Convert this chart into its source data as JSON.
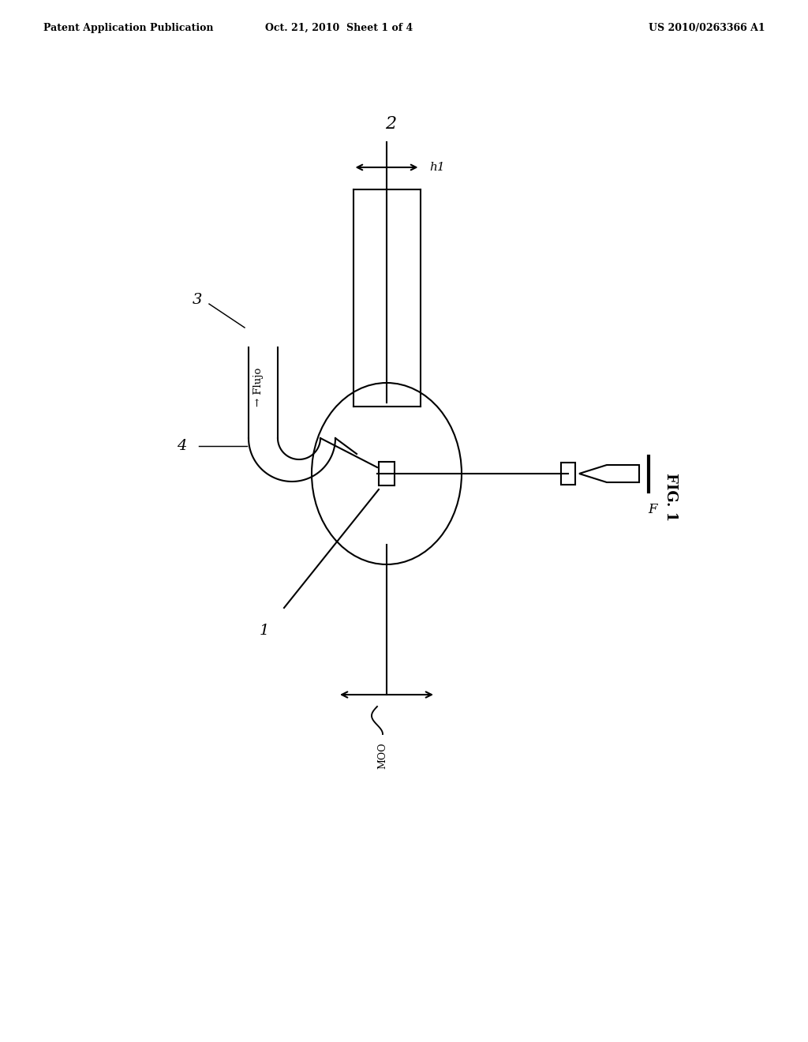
{
  "header_left": "Patent Application Publication",
  "header_center": "Oct. 21, 2010  Sheet 1 of 4",
  "header_right": "US 2010/0263366 A1",
  "fig_label": "FIG. 1",
  "label_2": "2",
  "label_3": "3",
  "label_4": "4",
  "label_1": "1",
  "label_h1": "h1",
  "label_F": "F",
  "label_moo": "MOO",
  "label_flujo": "→ Flujo",
  "bg_color": "#ffffff",
  "line_color": "#000000",
  "lw": 1.5
}
